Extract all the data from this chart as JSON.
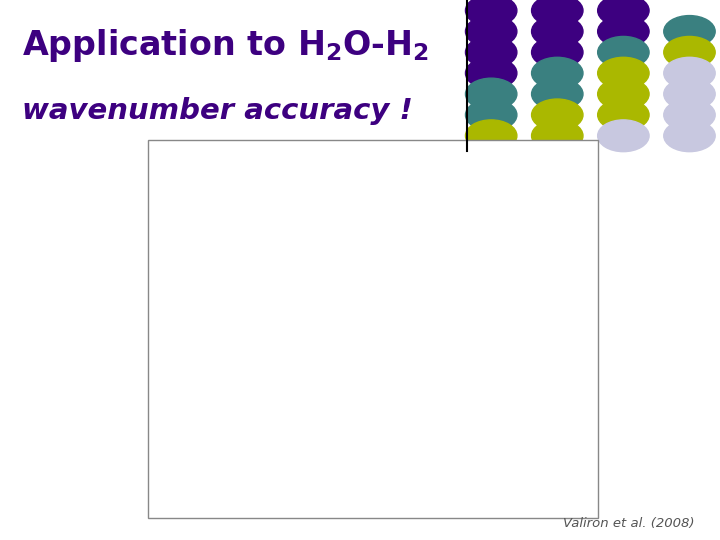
{
  "title_line1": "Application to H₂O-H₂",
  "title_line2": "wavenumber accuracy !",
  "title_color": "#3d0080",
  "subtitle_color": "#3d0080",
  "citation": "Valiron et al. (2008)",
  "citation_color": "#555555",
  "bg_color": "#ffffff",
  "dot_colors_rows": [
    [
      "#3d0080",
      "#3d0080",
      "#3d0080",
      "#ffffff"
    ],
    [
      "#3d0080",
      "#3d0080",
      "#3d0080",
      "#3a8080"
    ],
    [
      "#3d0080",
      "#3d0080",
      "#3a8080",
      "#aab800"
    ],
    [
      "#3d0080",
      "#3a8080",
      "#aab800",
      "#c8c8e0"
    ],
    [
      "#3a8080",
      "#3a8080",
      "#aab800",
      "#c8c8e0"
    ],
    [
      "#3a8080",
      "#aab800",
      "#aab800",
      "#c8c8e0"
    ],
    [
      "#aab800",
      "#aab800",
      "#c8c8e0",
      "#c8c8e0"
    ]
  ],
  "threshold_color": "#00008b",
  "caption_color": "#333333",
  "figure_border": "#888888"
}
